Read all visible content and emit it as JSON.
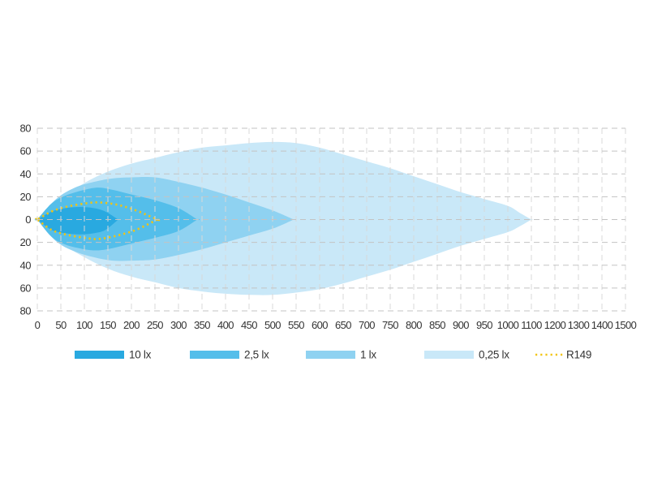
{
  "chart_data": {
    "type": "area",
    "title": "",
    "subtitle": "",
    "xlabel": "",
    "ylabel": "",
    "grid": true,
    "legend_position": "bottom",
    "x_axis": {
      "tick_labels": [
        "0",
        "50",
        "100",
        "150",
        "200",
        "250",
        "300",
        "350",
        "400",
        "450",
        "500",
        "550",
        "600",
        "650",
        "700",
        "750",
        "800",
        "850",
        "900",
        "950",
        "1000",
        "1100",
        "1200",
        "1300",
        "1400",
        "1500"
      ],
      "tick_values": [
        0,
        50,
        100,
        150,
        200,
        250,
        300,
        350,
        400,
        450,
        500,
        550,
        600,
        650,
        700,
        750,
        800,
        850,
        900,
        950,
        1000,
        1100,
        1200,
        1300,
        1400,
        1500
      ],
      "range": [
        0,
        1500
      ],
      "scale_note": "equal gridline spacing; 50 per division up to 1000, then 100 per division"
    },
    "y_axis": {
      "tick_labels": [
        "80",
        "60",
        "40",
        "20",
        "0",
        "20",
        "40",
        "60",
        "80"
      ],
      "tick_values": [
        80,
        60,
        40,
        20,
        0,
        -20,
        -40,
        -60,
        -80
      ],
      "range": [
        -80,
        80
      ]
    },
    "series": [
      {
        "name": "0,25 lx",
        "value_lux": 0.25,
        "color": "#C9E8F8",
        "reach": 1100,
        "top": [
          [
            0,
            0
          ],
          [
            50,
            18
          ],
          [
            100,
            32
          ],
          [
            150,
            42
          ],
          [
            200,
            49
          ],
          [
            250,
            54
          ],
          [
            300,
            59
          ],
          [
            350,
            63
          ],
          [
            400,
            65
          ],
          [
            450,
            67
          ],
          [
            500,
            68
          ],
          [
            550,
            67
          ],
          [
            600,
            63
          ],
          [
            650,
            57
          ],
          [
            700,
            51
          ],
          [
            750,
            45
          ],
          [
            800,
            38
          ],
          [
            850,
            31
          ],
          [
            900,
            24
          ],
          [
            950,
            18
          ],
          [
            1000,
            12
          ],
          [
            1050,
            6
          ],
          [
            1100,
            0
          ]
        ],
        "bottom": [
          [
            0,
            0
          ],
          [
            50,
            20
          ],
          [
            100,
            33
          ],
          [
            150,
            43
          ],
          [
            200,
            50
          ],
          [
            250,
            55
          ],
          [
            300,
            60
          ],
          [
            350,
            63
          ],
          [
            400,
            65
          ],
          [
            450,
            66
          ],
          [
            500,
            66
          ],
          [
            550,
            64
          ],
          [
            600,
            61
          ],
          [
            650,
            56
          ],
          [
            700,
            50
          ],
          [
            750,
            44
          ],
          [
            800,
            37
          ],
          [
            850,
            30
          ],
          [
            900,
            23
          ],
          [
            950,
            17
          ],
          [
            1000,
            11
          ],
          [
            1050,
            6
          ],
          [
            1100,
            0
          ]
        ]
      },
      {
        "name": "1 lx",
        "value_lux": 1,
        "color": "#8FD2F1",
        "reach": 545,
        "top": [
          [
            0,
            0
          ],
          [
            40,
            18
          ],
          [
            80,
            28
          ],
          [
            120,
            33
          ],
          [
            160,
            36
          ],
          [
            200,
            37
          ],
          [
            250,
            37
          ],
          [
            300,
            33
          ],
          [
            350,
            28
          ],
          [
            400,
            22
          ],
          [
            450,
            15
          ],
          [
            500,
            8
          ],
          [
            545,
            0
          ]
        ],
        "bottom": [
          [
            0,
            0
          ],
          [
            40,
            19
          ],
          [
            80,
            28
          ],
          [
            120,
            33
          ],
          [
            160,
            36
          ],
          [
            200,
            36
          ],
          [
            250,
            35
          ],
          [
            300,
            31
          ],
          [
            350,
            26
          ],
          [
            400,
            20
          ],
          [
            450,
            14
          ],
          [
            500,
            8
          ],
          [
            545,
            0
          ]
        ]
      },
      {
        "name": "2,5 lx",
        "value_lux": 2.5,
        "color": "#54BEEA",
        "reach": 340,
        "top": [
          [
            0,
            0
          ],
          [
            30,
            14
          ],
          [
            60,
            21
          ],
          [
            100,
            26
          ],
          [
            130,
            28
          ],
          [
            160,
            26
          ],
          [
            200,
            22
          ],
          [
            250,
            17
          ],
          [
            300,
            10
          ],
          [
            340,
            0
          ]
        ],
        "bottom": [
          [
            0,
            0
          ],
          [
            30,
            15
          ],
          [
            60,
            22
          ],
          [
            100,
            26
          ],
          [
            130,
            27
          ],
          [
            160,
            25
          ],
          [
            200,
            21
          ],
          [
            250,
            16
          ],
          [
            300,
            10
          ],
          [
            340,
            0
          ]
        ]
      },
      {
        "name": "10 lx",
        "value_lux": 10,
        "color": "#29A9E0",
        "reach": 172,
        "top": [
          [
            0,
            0
          ],
          [
            30,
            7
          ],
          [
            60,
            10
          ],
          [
            90,
            11
          ],
          [
            120,
            10
          ],
          [
            145,
            7
          ],
          [
            172,
            0
          ]
        ],
        "bottom": [
          [
            0,
            0
          ],
          [
            30,
            9
          ],
          [
            60,
            12
          ],
          [
            90,
            13
          ],
          [
            120,
            12
          ],
          [
            145,
            9
          ],
          [
            172,
            0
          ]
        ]
      }
    ],
    "reference_line": {
      "name": "R149",
      "color": "#F2C411",
      "style": "dotted",
      "reach": 255,
      "top": [
        [
          0,
          0
        ],
        [
          30,
          7
        ],
        [
          60,
          11
        ],
        [
          100,
          14
        ],
        [
          130,
          15
        ],
        [
          170,
          13
        ],
        [
          210,
          8
        ],
        [
          255,
          0
        ]
      ],
      "bottom": [
        [
          0,
          0
        ],
        [
          30,
          9
        ],
        [
          60,
          13
        ],
        [
          100,
          16
        ],
        [
          130,
          17
        ],
        [
          170,
          14
        ],
        [
          210,
          9
        ],
        [
          255,
          0
        ]
      ]
    },
    "legend": {
      "items": [
        {
          "label": "10 lx",
          "color": "#29A9E0",
          "type": "swatch"
        },
        {
          "label": "2,5 lx",
          "color": "#54BEEA",
          "type": "swatch"
        },
        {
          "label": "1 lx",
          "color": "#8FD2F1",
          "type": "swatch"
        },
        {
          "label": "0,25 lx",
          "color": "#C9E8F8",
          "type": "swatch"
        },
        {
          "label": "R149",
          "color": "#F2C411",
          "type": "dotted-line"
        }
      ]
    },
    "style_colors": {
      "grid_vertical": "#d8d8d8",
      "grid_horizontal": "#c3c3c3",
      "tick_label": "#333333",
      "background": "#ffffff"
    }
  }
}
